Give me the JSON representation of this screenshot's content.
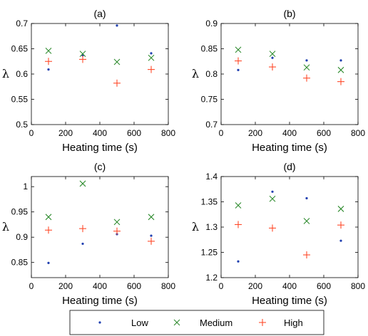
{
  "chart_data": [
    {
      "type": "scatter",
      "title": "(a)",
      "xlabel": "Heating time (s)",
      "ylabel": "λ",
      "xlim": [
        0,
        800
      ],
      "ylim": [
        0.5,
        0.7
      ],
      "xticks": [
        "0",
        "200",
        "400",
        "600",
        "800"
      ],
      "yticks": [
        "0.5",
        "0.55",
        "0.6",
        "0.65",
        "0.7"
      ],
      "x": [
        100,
        300,
        500,
        700
      ],
      "series": [
        {
          "name": "Low",
          "values": [
            0.609,
            0.637,
            0.696,
            0.641
          ]
        },
        {
          "name": "Medium",
          "values": [
            0.646,
            0.64,
            0.624,
            0.632
          ]
        },
        {
          "name": "High",
          "values": [
            0.625,
            0.629,
            0.582,
            0.609
          ]
        }
      ]
    },
    {
      "type": "scatter",
      "title": "(b)",
      "xlabel": "Heating time (s)",
      "ylabel": "λ",
      "xlim": [
        0,
        800
      ],
      "ylim": [
        0.7,
        0.9
      ],
      "xticks": [
        "0",
        "200",
        "400",
        "600",
        "800"
      ],
      "yticks": [
        "0.7",
        "0.75",
        "0.8",
        "0.85",
        "0.9"
      ],
      "x": [
        100,
        300,
        500,
        700
      ],
      "series": [
        {
          "name": "Low",
          "values": [
            0.808,
            0.832,
            0.827,
            0.827
          ]
        },
        {
          "name": "Medium",
          "values": [
            0.848,
            0.84,
            0.813,
            0.808
          ]
        },
        {
          "name": "High",
          "values": [
            0.826,
            0.814,
            0.792,
            0.785
          ]
        }
      ]
    },
    {
      "type": "scatter",
      "title": "(c)",
      "xlabel": "Heating time (s)",
      "ylabel": "λ",
      "xlim": [
        0,
        800
      ],
      "ylim": [
        0.82,
        1.02
      ],
      "xticks": [
        "0",
        "200",
        "400",
        "600",
        "800"
      ],
      "yticks": [
        "0.85",
        "0.9",
        "0.95",
        "1"
      ],
      "ytick_values": [
        0.85,
        0.9,
        0.95,
        1.0
      ],
      "x": [
        100,
        300,
        500,
        700
      ],
      "series": [
        {
          "name": "Low",
          "values": [
            0.849,
            0.887,
            0.906,
            0.903
          ]
        },
        {
          "name": "Medium",
          "values": [
            0.94,
            1.006,
            0.93,
            0.94
          ]
        },
        {
          "name": "High",
          "values": [
            0.914,
            0.917,
            0.912,
            0.892
          ]
        }
      ]
    },
    {
      "type": "scatter",
      "title": "(d)",
      "xlabel": "Heating time (s)",
      "ylabel": "λ",
      "xlim": [
        0,
        800
      ],
      "ylim": [
        1.2,
        1.4
      ],
      "xticks": [
        "0",
        "200",
        "400",
        "600",
        "800"
      ],
      "yticks": [
        "1.2",
        "1.25",
        "1.3",
        "1.35",
        "1.4"
      ],
      "x": [
        100,
        300,
        500,
        700
      ],
      "series": [
        {
          "name": "Low",
          "values": [
            1.232,
            1.37,
            1.357,
            1.273
          ]
        },
        {
          "name": "Medium",
          "values": [
            1.343,
            1.356,
            1.312,
            1.336
          ]
        },
        {
          "name": "High",
          "values": [
            1.305,
            1.298,
            1.245,
            1.304
          ]
        }
      ]
    }
  ],
  "legend": {
    "placement": "bottom",
    "entries": [
      {
        "label": "Low",
        "marker": "dot",
        "color": "#1f3fb0"
      },
      {
        "label": "Medium",
        "marker": "x",
        "color": "#2e8b2e"
      },
      {
        "label": "High",
        "marker": "plus",
        "color": "#ff4a2a"
      }
    ]
  }
}
